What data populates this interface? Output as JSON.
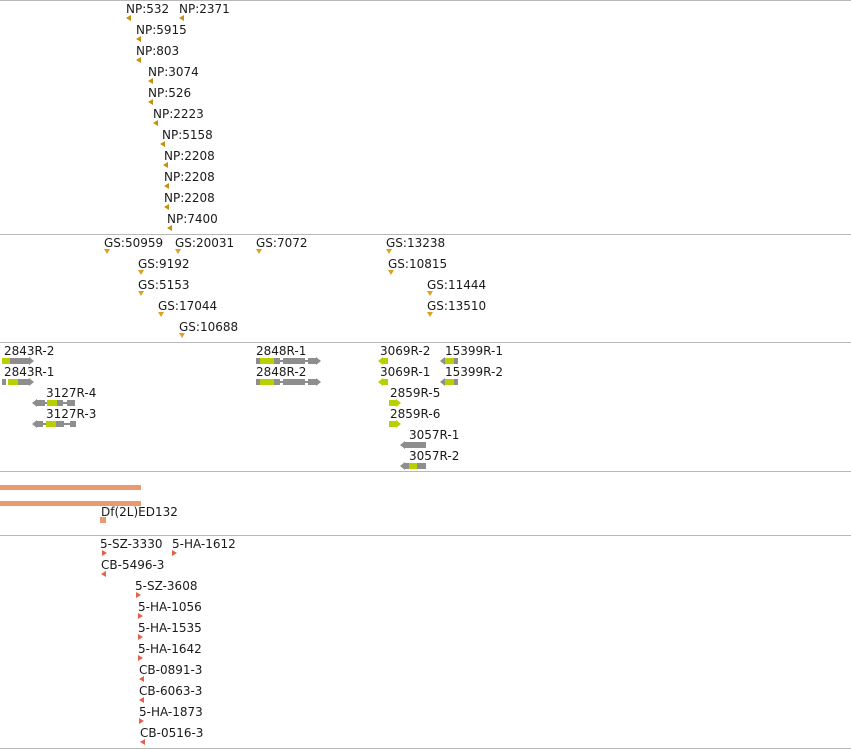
{
  "colors": {
    "np_marker": "#c8900a",
    "gs_marker": "#e0a020",
    "gene_intron": "#8e8e8e",
    "gene_coding": "#b8d000",
    "deficiency": "#e89a70",
    "insertion": "#e8604a",
    "divider": "#b8b8b8"
  },
  "np_track": {
    "features": [
      "NP:532",
      "NP:2371",
      "NP:5915",
      "NP:803",
      "NP:3074",
      "NP:526",
      "NP:2223",
      "NP:5158",
      "NP:2208",
      "NP:2208",
      "NP:2208",
      "NP:7400"
    ]
  },
  "gs_track": {
    "features": [
      "GS:50959",
      "GS:20031",
      "GS:7072",
      "GS:13238",
      "GS:9192",
      "GS:10815",
      "GS:5153",
      "GS:11444",
      "GS:17044",
      "GS:13510",
      "GS:10688"
    ]
  },
  "gene_track": {
    "transcripts": [
      "2843R-2",
      "2843R-1",
      "3127R-4",
      "3127R-3",
      "2848R-1",
      "2848R-2",
      "3069R-2",
      "3069R-1",
      "15399R-1",
      "15399R-2",
      "2859R-5",
      "2859R-6",
      "3057R-1",
      "3057R-2"
    ]
  },
  "deficiency_track": {
    "features": [
      "Df(2L)ED132"
    ]
  },
  "insertion_track": {
    "features": [
      "5-SZ-3330",
      "5-HA-1612",
      "CB-5496-3",
      "5-SZ-3608",
      "5-HA-1056",
      "5-HA-1535",
      "5-HA-1642",
      "CB-0891-3",
      "CB-6063-3",
      "5-HA-1873",
      "CB-0516-3"
    ]
  }
}
